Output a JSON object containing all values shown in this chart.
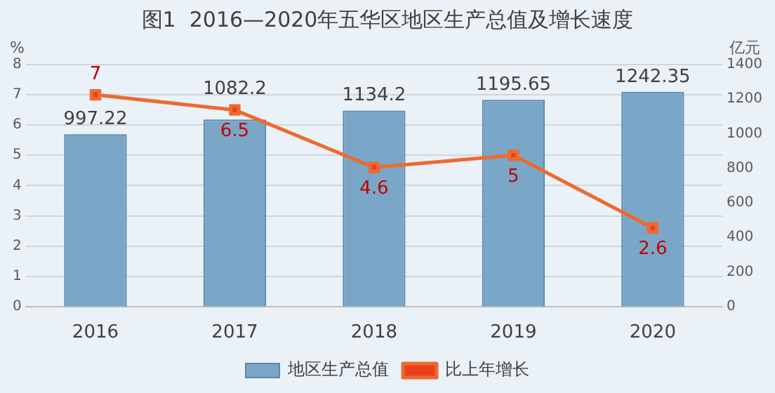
{
  "chart_data": {
    "type": "bar",
    "title": "图1  2016—2020年五华区地区生产总值及增长速度",
    "ylabel": "%",
    "y2label": "亿元",
    "categories": [
      "2016",
      "2017",
      "2018",
      "2019",
      "2020"
    ],
    "series": [
      {
        "name": "地区生产总值",
        "axis": "y2",
        "color": "#7aa6c8",
        "values": [
          997.22,
          1082.2,
          1134.2,
          1195.65,
          1242.35
        ]
      },
      {
        "name": "比上年增长",
        "type": "line",
        "axis": "y",
        "color": "#ed6a30",
        "values": [
          7,
          6.5,
          4.6,
          5,
          2.6
        ]
      }
    ],
    "ylim": [
      0,
      8
    ],
    "yticks": [
      0,
      1,
      2,
      3,
      4,
      5,
      6,
      7,
      8
    ],
    "y2lim": [
      0,
      1400
    ],
    "y2ticks": [
      0,
      200,
      400,
      600,
      800,
      1000,
      1200,
      1400
    ],
    "grid": "y",
    "legend": "bottom",
    "marker": "square",
    "data_labels": true
  }
}
